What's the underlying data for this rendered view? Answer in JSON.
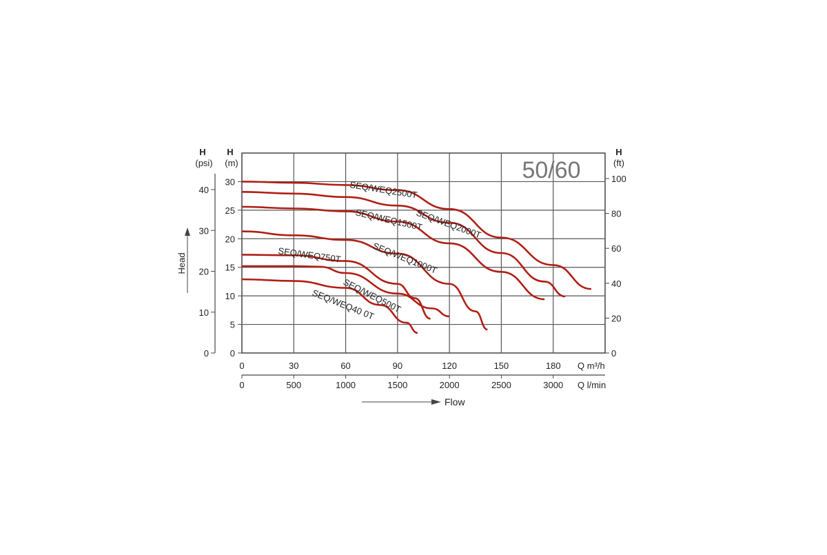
{
  "chart_data": {
    "type": "line",
    "title": "",
    "badge": "50/60",
    "xlabel": "Flow",
    "x_axis": {
      "label": "Q m³/h",
      "range": [
        0,
        210
      ],
      "ticks": [
        0,
        30,
        60,
        90,
        120,
        150,
        180
      ]
    },
    "x2_axis": {
      "label": "Q l/min",
      "ticks": [
        0,
        500,
        1000,
        1500,
        2000,
        2500,
        3000
      ]
    },
    "y_axis": {
      "label_top": "H",
      "unit": "(m)",
      "range": [
        0,
        35
      ],
      "ticks": [
        0,
        5,
        10,
        15,
        20,
        25,
        30
      ]
    },
    "y_psi_axis": {
      "label_top": "H",
      "unit": "(psi)",
      "ticks": [
        0,
        10,
        20,
        30,
        40
      ]
    },
    "y_ft_axis": {
      "label_top": "H",
      "unit": "(ft)",
      "ticks": [
        0,
        20,
        40,
        60,
        80,
        100
      ]
    },
    "ylabel": "Head",
    "grid": true,
    "line_color": "#b01e14",
    "series": [
      {
        "name": "SEQ/WEQ2500T",
        "x": [
          0,
          30,
          60,
          90,
          120,
          150,
          180,
          202
        ],
        "y": [
          30,
          29.8,
          29.4,
          28.5,
          25.2,
          20.2,
          15.4,
          11.2
        ]
      },
      {
        "name": "SEQ/WEQ2000T",
        "x": [
          0,
          30,
          60,
          90,
          120,
          150,
          175,
          187
        ],
        "y": [
          28.2,
          27.9,
          27.3,
          25.8,
          22.8,
          17.5,
          12.5,
          9.9
        ]
      },
      {
        "name": "SEQ/WEQ1500T",
        "x": [
          0,
          30,
          60,
          90,
          120,
          150,
          175
        ],
        "y": [
          25.6,
          25.3,
          24.8,
          23,
          19.2,
          14.2,
          9.4
        ]
      },
      {
        "name": "SEQ/WEQ1000T",
        "x": [
          0,
          30,
          60,
          90,
          120,
          135,
          142
        ],
        "y": [
          21.3,
          20.6,
          19.8,
          17.4,
          12.1,
          7.3,
          4.1
        ]
      },
      {
        "name": "SEQ/WEQ750T",
        "x": [
          0,
          30,
          60,
          90,
          100,
          109
        ],
        "y": [
          17.2,
          17.1,
          16.1,
          12.1,
          9.6,
          6
        ]
      },
      {
        "name": "SEQ/WEQ500T",
        "x": [
          0,
          30,
          45,
          60,
          90,
          110,
          120
        ],
        "y": [
          15.2,
          15.2,
          15.1,
          14,
          10.4,
          7.8,
          6.4
        ]
      },
      {
        "name": "SEQ/WEQ400T",
        "x": [
          0,
          30,
          60,
          80,
          95,
          101.6
        ],
        "y": [
          12.9,
          12.6,
          11.4,
          8.4,
          5.3,
          3.5
        ]
      }
    ],
    "label_texts": [
      "SEQ/WEQ2500T",
      "SEQ/WEQ2000T",
      "SEQ/WEQ1500T",
      "SEQ/WEQ1000T",
      "SEQ/WEQ750T",
      "SEQ/WEQ500T",
      "SEQ/WEQ40 0T"
    ]
  }
}
